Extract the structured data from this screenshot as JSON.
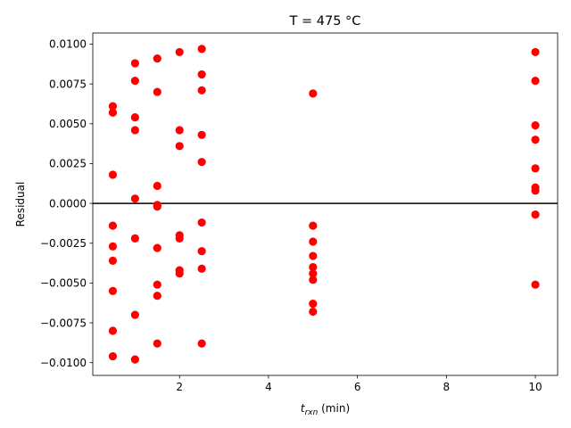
{
  "chart_data": {
    "type": "scatter",
    "title": "T = 475 °C",
    "xlabel_main": "t",
    "xlabel_sub": "rxn",
    "xlabel_unit": " (min)",
    "ylabel": "Residual",
    "xlim": [
      0.05,
      10.5
    ],
    "ylim": [
      -0.0108,
      0.0107
    ],
    "x_ticks": [
      2,
      4,
      6,
      8,
      10
    ],
    "x_tick_labels": [
      "2",
      "4",
      "6",
      "8",
      "10"
    ],
    "y_ticks": [
      -0.01,
      -0.0075,
      -0.005,
      -0.0025,
      0.0,
      0.0025,
      0.005,
      0.0075,
      0.01
    ],
    "y_tick_labels": [
      "−0.0100",
      "−0.0075",
      "−0.0050",
      "−0.0025",
      "0.0000",
      "0.0025",
      "0.0050",
      "0.0075",
      "0.0100"
    ],
    "reference_line_y": 0,
    "grid": false,
    "colors": {
      "points": "#ff0000",
      "axes": "#000000",
      "zero_line": "#000000"
    },
    "series": [
      {
        "points": [
          [
            0.5,
            0.0061
          ],
          [
            0.5,
            0.0057
          ],
          [
            0.5,
            0.0018
          ],
          [
            0.5,
            -0.0014
          ],
          [
            0.5,
            -0.0027
          ],
          [
            0.5,
            -0.0036
          ],
          [
            0.5,
            -0.0055
          ],
          [
            0.5,
            -0.008
          ],
          [
            0.5,
            -0.0096
          ],
          [
            1.0,
            0.0088
          ],
          [
            1.0,
            0.0077
          ],
          [
            1.0,
            0.0054
          ],
          [
            1.0,
            0.0046
          ],
          [
            1.0,
            0.0003
          ],
          [
            1.0,
            -0.0022
          ],
          [
            1.0,
            -0.007
          ],
          [
            1.0,
            -0.0098
          ],
          [
            1.5,
            0.0091
          ],
          [
            1.5,
            0.007
          ],
          [
            1.5,
            0.0011
          ],
          [
            1.5,
            -0.0001
          ],
          [
            1.5,
            -0.0002
          ],
          [
            1.5,
            -0.0028
          ],
          [
            1.5,
            -0.0051
          ],
          [
            1.5,
            -0.0058
          ],
          [
            1.5,
            -0.0088
          ],
          [
            2.0,
            0.0095
          ],
          [
            2.0,
            0.0046
          ],
          [
            2.0,
            0.0036
          ],
          [
            2.0,
            -0.002
          ],
          [
            2.0,
            -0.0022
          ],
          [
            2.0,
            -0.0042
          ],
          [
            2.0,
            -0.0044
          ],
          [
            2.5,
            0.0097
          ],
          [
            2.5,
            0.0081
          ],
          [
            2.5,
            0.0071
          ],
          [
            2.5,
            0.0043
          ],
          [
            2.5,
            0.0026
          ],
          [
            2.5,
            -0.0012
          ],
          [
            2.5,
            -0.003
          ],
          [
            2.5,
            -0.0041
          ],
          [
            2.5,
            -0.0088
          ],
          [
            5.0,
            0.0069
          ],
          [
            5.0,
            -0.0014
          ],
          [
            5.0,
            -0.0024
          ],
          [
            5.0,
            -0.0033
          ],
          [
            5.0,
            -0.004
          ],
          [
            5.0,
            -0.0044
          ],
          [
            5.0,
            -0.0048
          ],
          [
            5.0,
            -0.0063
          ],
          [
            5.0,
            -0.0068
          ],
          [
            10.0,
            0.0095
          ],
          [
            10.0,
            0.0077
          ],
          [
            10.0,
            0.0049
          ],
          [
            10.0,
            0.004
          ],
          [
            10.0,
            0.0022
          ],
          [
            10.0,
            0.001
          ],
          [
            10.0,
            0.0008
          ],
          [
            10.0,
            -0.0007
          ],
          [
            10.0,
            -0.0051
          ]
        ]
      }
    ]
  }
}
